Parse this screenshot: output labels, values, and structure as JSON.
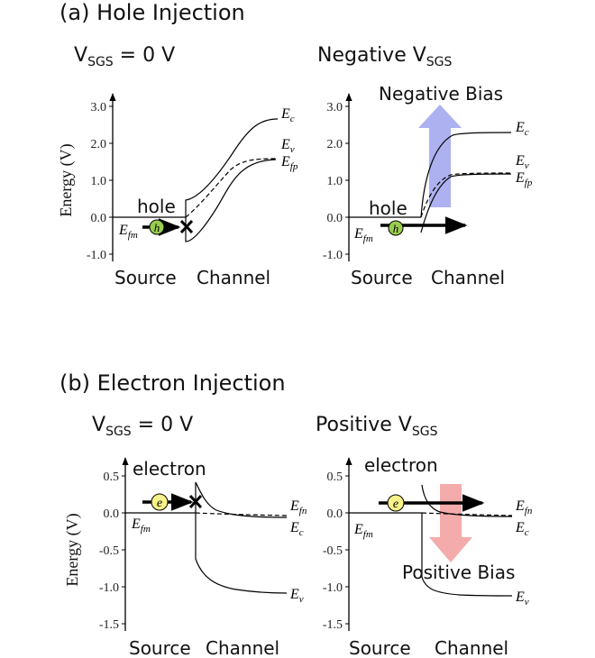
{
  "panel_a": {
    "title": "(a) Hole Injection",
    "left": {
      "condition_main": "V",
      "condition_sub": "SGS",
      "condition_tail": " = 0 V",
      "carrier_label": "hole",
      "carrier_symbol": "h",
      "blocked": true
    },
    "right": {
      "condition_main": "Negative V",
      "condition_sub": "SGS",
      "carrier_label": "hole",
      "carrier_symbol": "h",
      "bias_label": "Negative Bias",
      "blocked": false
    }
  },
  "panel_b": {
    "title": "(b) Electron Injection",
    "left": {
      "condition_main": "V",
      "condition_sub": "SGS",
      "condition_tail": " = 0 V",
      "carrier_label": "electron",
      "carrier_symbol": "e",
      "blocked": true
    },
    "right": {
      "condition_main": "Positive V",
      "condition_sub": "SGS",
      "carrier_label": "electron",
      "carrier_symbol": "e",
      "bias_label": "Positive Bias",
      "blocked": false
    }
  },
  "axis": {
    "ylabel": "Energy (V)",
    "hole_ticks": [
      "3.0",
      "2.0",
      "1.0",
      "0.0",
      "-1.0"
    ],
    "electron_ticks": [
      "0.5",
      "0.0",
      "-0.5",
      "-1.0",
      "-1.5"
    ],
    "source_label": "Source",
    "channel_label": "Channel"
  },
  "band_labels": {
    "Ec": {
      "main": "E",
      "sub": "c"
    },
    "Ev": {
      "main": "E",
      "sub": "v"
    },
    "Efp": {
      "main": "E",
      "sub": "fp"
    },
    "Efn": {
      "main": "E",
      "sub": "fn"
    },
    "Efm": {
      "main": "E",
      "sub": "fm"
    }
  },
  "colors": {
    "hole_fill": "#9acd4e",
    "electron_fill": "#f7f28a",
    "negative_bias_arrow": "#a9adee",
    "positive_bias_arrow": "#f3a6a6",
    "line": "#000000"
  }
}
